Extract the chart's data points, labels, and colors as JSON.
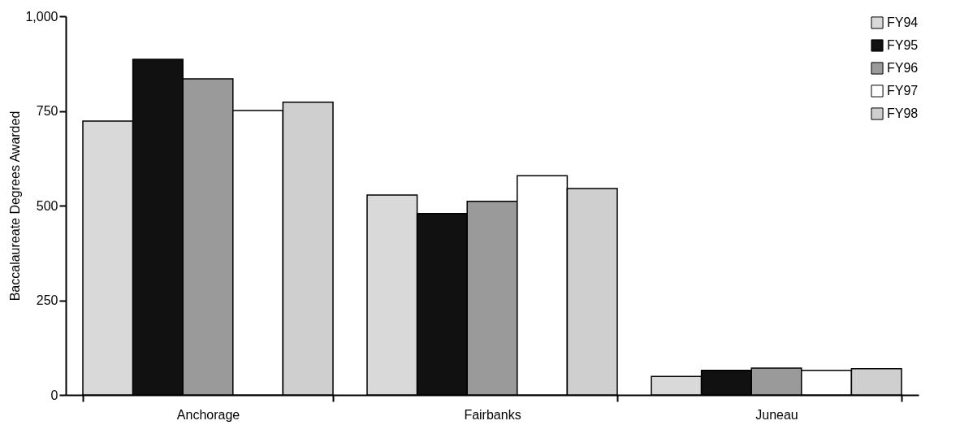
{
  "chart_data": {
    "type": "bar",
    "ylabel": "Baccalaureate Degrees Awarded",
    "categories": [
      "Anchorage",
      "Fairbanks",
      "Juneau"
    ],
    "series": [
      {
        "name": "FY94",
        "color": "#d9d9d9",
        "values": [
          723,
          528,
          49
        ]
      },
      {
        "name": "FY95",
        "color": "#111111",
        "values": [
          886,
          479,
          65
        ]
      },
      {
        "name": "FY96",
        "color": "#9a9a9a",
        "values": [
          835,
          511,
          71
        ]
      },
      {
        "name": "FY97",
        "color": "#ffffff",
        "values": [
          751,
          579,
          65
        ]
      },
      {
        "name": "FY98",
        "color": "#cfcfcf",
        "values": [
          773,
          545,
          69
        ]
      }
    ],
    "ylim": [
      0,
      1000
    ],
    "yticks": [
      0,
      250,
      500,
      750,
      {
        "value": 1000,
        "label": "1,000"
      }
    ],
    "grid": false,
    "legend": "top right"
  }
}
